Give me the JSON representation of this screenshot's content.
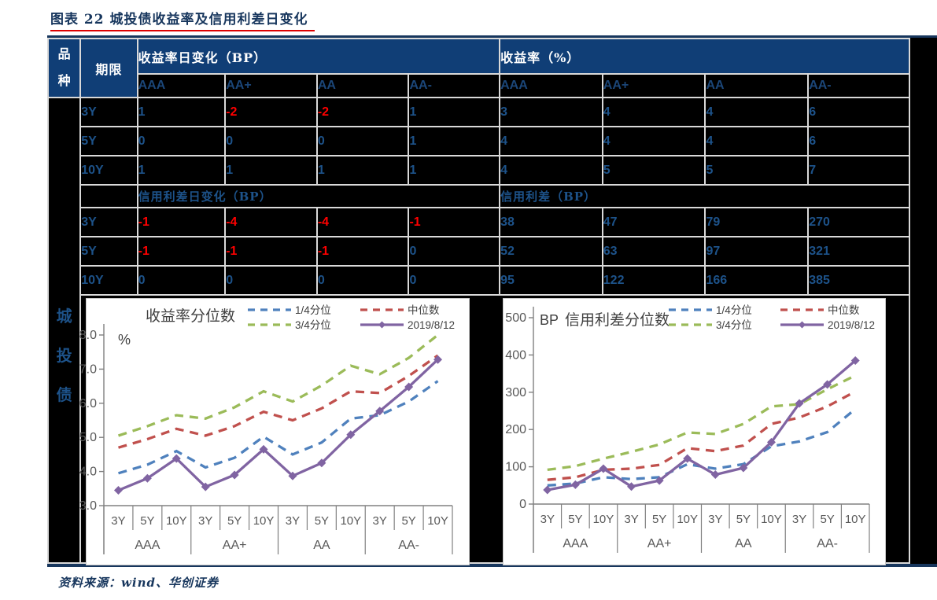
{
  "page_title": "图表 22  城投债收益率及信用利差日变化",
  "footer": {
    "source_label": "资料来源：wind、华创证券"
  },
  "table": {
    "variety_header": "品种",
    "term_header": "期限",
    "variety_label": "城投债",
    "ratings": [
      "AAA",
      "AA+",
      "AA",
      "AA-"
    ],
    "block1": {
      "left_title": "收益率日变化（BP）",
      "right_title": "收益率（%）",
      "rows": [
        {
          "term": "3Y",
          "left": [
            "1",
            "-2",
            "-2",
            "1"
          ],
          "right": [
            "3",
            "4",
            "4",
            "6"
          ]
        },
        {
          "term": "5Y",
          "left": [
            "0",
            "0",
            "0",
            "1"
          ],
          "right": [
            "4",
            "4",
            "4",
            "6"
          ]
        },
        {
          "term": "10Y",
          "left": [
            "1",
            "1",
            "1",
            "1"
          ],
          "right": [
            "4",
            "5",
            "5",
            "7"
          ]
        }
      ]
    },
    "block2": {
      "left_title": "信用利差日变化（BP）",
      "right_title": "信用利差（BP）",
      "rows": [
        {
          "term": "3Y",
          "left": [
            "-1",
            "-4",
            "-4",
            "-1"
          ],
          "right": [
            "38",
            "47",
            "79",
            "270"
          ]
        },
        {
          "term": "5Y",
          "left": [
            "-1",
            "-1",
            "-1",
            "0"
          ],
          "right": [
            "52",
            "63",
            "97",
            "321"
          ]
        },
        {
          "term": "10Y",
          "left": [
            "0",
            "0",
            "0",
            "0"
          ],
          "right": [
            "95",
            "122",
            "166",
            "385"
          ]
        }
      ]
    }
  },
  "colors": {
    "header_navy": "#103e76",
    "title_navy": "#17365d",
    "value_blue": "#1d5289",
    "negative_red": "#ff0000",
    "grid_line": "#d9d9d9",
    "chart_text": "#595959",
    "axis_gray": "#808080"
  },
  "chart_data": [
    {
      "type": "line",
      "name": "yield-percentile-chart",
      "title": "收益率分位数",
      "unit": "%",
      "categories": [
        "3Y",
        "5Y",
        "10Y",
        "3Y",
        "5Y",
        "10Y",
        "3Y",
        "5Y",
        "10Y",
        "3Y",
        "5Y",
        "10Y"
      ],
      "groups": [
        "AAA",
        "AA+",
        "AA",
        "AA-"
      ],
      "ylim": [
        3.0,
        8.0
      ],
      "ytick_step": 1.0,
      "ytick_decimals": 1,
      "legend_position": "top-right",
      "grid": false,
      "series": [
        {
          "name": "1/4分位",
          "color": "#4f81bd",
          "style": "dashed",
          "values": [
            3.95,
            4.2,
            4.6,
            4.12,
            4.4,
            5.02,
            4.5,
            4.85,
            5.55,
            5.65,
            6.05,
            6.65
          ]
        },
        {
          "name": "中位数",
          "color": "#c0504d",
          "style": "dashed",
          "values": [
            4.7,
            4.95,
            5.25,
            5.05,
            5.33,
            5.75,
            5.5,
            5.85,
            6.35,
            6.3,
            6.8,
            7.4
          ]
        },
        {
          "name": "3/4分位",
          "color": "#9bbb59",
          "style": "dashed",
          "values": [
            5.05,
            5.33,
            5.65,
            5.55,
            5.88,
            6.35,
            6.05,
            6.52,
            7.1,
            6.85,
            7.33,
            8.0
          ]
        },
        {
          "name": "2019/8/12",
          "color": "#8064a2",
          "style": "solid-diamond",
          "values": [
            3.45,
            3.8,
            4.38,
            3.55,
            3.9,
            4.65,
            3.87,
            4.25,
            5.08,
            5.77,
            6.48,
            7.28
          ]
        }
      ]
    },
    {
      "type": "line",
      "name": "credit-spread-percentile-chart",
      "title": "信用利差分位数",
      "unit": "BP",
      "categories": [
        "3Y",
        "5Y",
        "10Y",
        "3Y",
        "5Y",
        "10Y",
        "3Y",
        "5Y",
        "10Y",
        "3Y",
        "5Y",
        "10Y"
      ],
      "groups": [
        "AAA",
        "AA+",
        "AA",
        "AA-"
      ],
      "ylim": [
        0,
        500
      ],
      "ytick_step": 100,
      "ytick_decimals": 0,
      "legend_position": "top-right",
      "grid": false,
      "series": [
        {
          "name": "1/4分位",
          "color": "#4f81bd",
          "style": "dashed",
          "values": [
            50,
            55,
            72,
            67,
            72,
            107,
            95,
            107,
            155,
            168,
            193,
            255
          ]
        },
        {
          "name": "中位数",
          "color": "#c0504d",
          "style": "dashed",
          "values": [
            65,
            72,
            92,
            95,
            105,
            150,
            142,
            157,
            215,
            232,
            262,
            302
          ]
        },
        {
          "name": "3/4分位",
          "color": "#9bbb59",
          "style": "dashed",
          "values": [
            92,
            102,
            122,
            140,
            160,
            192,
            188,
            215,
            262,
            268,
            308,
            345
          ]
        },
        {
          "name": "2019/8/12",
          "color": "#8064a2",
          "style": "solid-diamond",
          "values": [
            38,
            52,
            95,
            47,
            63,
            122,
            79,
            97,
            166,
            270,
            321,
            385
          ]
        }
      ]
    }
  ]
}
